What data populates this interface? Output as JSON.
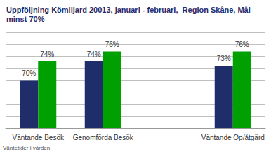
{
  "chart_data": {
    "type": "bar",
    "title": "Uppföljning Kömiljard 20013, januari - februari,  Region Skåne, Mål minst 70%",
    "categories": [
      "Väntande Besök",
      "Genomförda Besök",
      null,
      "Väntande Op/åtgärd"
    ],
    "series": [
      {
        "color": "#1f2d6b",
        "values": [
          70,
          74,
          null,
          73
        ],
        "value_labels": [
          "70%",
          "74%",
          null,
          "73%"
        ]
      },
      {
        "color": "#00a000",
        "values": [
          74,
          76,
          null,
          76
        ],
        "value_labels": [
          "74%",
          "76%",
          null,
          "76%"
        ]
      }
    ],
    "ylim": [
      60,
      80
    ],
    "yticks": [
      60,
      62.5,
      65,
      67.5,
      70,
      72.5,
      75,
      77.5,
      80
    ],
    "grid": true,
    "data_labels": true,
    "tick_labels": "x",
    "annotations": [
      "Väntetider i vården"
    ]
  }
}
